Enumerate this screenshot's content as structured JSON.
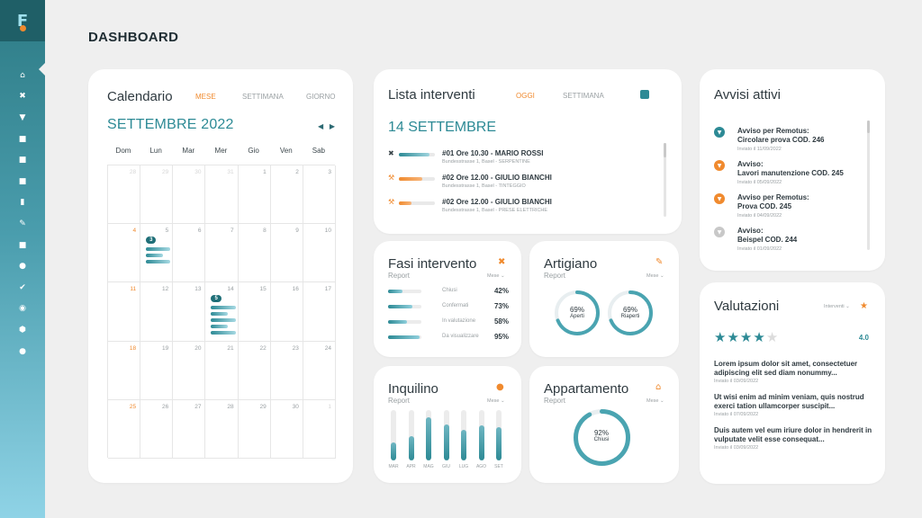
{
  "page_title": "DASHBOARD",
  "colors": {
    "accent": "#2d8a95",
    "orange": "#f08a2e",
    "sidebar_top": "#2d7b85",
    "sidebar_bottom": "#8fd3e6"
  },
  "sidebar": {
    "logo_letter": "F",
    "items": [
      {
        "icon": "home-icon",
        "glyph": "⌂"
      },
      {
        "icon": "tools-icon",
        "glyph": "✖"
      },
      {
        "icon": "filter-icon",
        "glyph": "▼"
      },
      {
        "icon": "folder-icon",
        "glyph": "■"
      },
      {
        "icon": "document-icon",
        "glyph": "■"
      },
      {
        "icon": "file-icon",
        "glyph": "■"
      },
      {
        "icon": "bookmark-icon",
        "glyph": "▮"
      },
      {
        "icon": "wrench-icon",
        "glyph": "✎"
      },
      {
        "icon": "briefcase-icon",
        "glyph": "■"
      },
      {
        "icon": "users-icon",
        "glyph": "●"
      },
      {
        "icon": "check-icon",
        "glyph": "✔"
      },
      {
        "icon": "power-icon",
        "glyph": "◉"
      },
      {
        "icon": "gear-icon",
        "glyph": "⬢"
      },
      {
        "icon": "chat-icon",
        "glyph": "●"
      }
    ]
  },
  "calendar": {
    "title": "Calendario",
    "tabs": [
      "MESE",
      "SETTIMANA",
      "GIORNO"
    ],
    "active_tab": "MESE",
    "month": "SETTEMBRE 2022",
    "weekdays": [
      "Dom",
      "Lun",
      "Mar",
      "Mer",
      "Gio",
      "Ven",
      "Sab"
    ],
    "weeks": [
      [
        {
          "d": "28",
          "m": true
        },
        {
          "d": "29",
          "m": true
        },
        {
          "d": "30",
          "m": true
        },
        {
          "d": "31",
          "m": true
        },
        {
          "d": "1"
        },
        {
          "d": "2"
        },
        {
          "d": "3"
        }
      ],
      [
        {
          "d": "4"
        },
        {
          "d": "5",
          "badge": "3",
          "bars": [
            0.8,
            0.55,
            0.8
          ]
        },
        {
          "d": "6"
        },
        {
          "d": "7"
        },
        {
          "d": "8"
        },
        {
          "d": "9"
        },
        {
          "d": "10"
        }
      ],
      [
        {
          "d": "11"
        },
        {
          "d": "12"
        },
        {
          "d": "13"
        },
        {
          "d": "14",
          "badge": "5",
          "bars": [
            0.8,
            0.55,
            0.8,
            0.55,
            0.8
          ]
        },
        {
          "d": "15"
        },
        {
          "d": "16"
        },
        {
          "d": "17"
        }
      ],
      [
        {
          "d": "18"
        },
        {
          "d": "19"
        },
        {
          "d": "20"
        },
        {
          "d": "21"
        },
        {
          "d": "22"
        },
        {
          "d": "23"
        },
        {
          "d": "24"
        }
      ],
      [
        {
          "d": "25"
        },
        {
          "d": "26"
        },
        {
          "d": "27"
        },
        {
          "d": "28"
        },
        {
          "d": "29"
        },
        {
          "d": "30"
        },
        {
          "d": "1",
          "m": true
        }
      ]
    ]
  },
  "interventi": {
    "title": "Lista interventi",
    "tabs": [
      "OGGI",
      "SETTIMANA"
    ],
    "active_tab": "OGGI",
    "date": "14 SETTEMBRE",
    "items": [
      {
        "icon": "tools-icon",
        "title": "#01 Ore 10.30 - MARIO ROSSI",
        "address": "Bundesstrasse 1, Basel - SERPENTINE",
        "progress": 0.85,
        "color": "#2d8a95"
      },
      {
        "icon": "hammer-icon",
        "title": "#02 Ore 12.00 - GIULIO BIANCHI",
        "address": "Bundesstrasse 1, Basel - TINTEGGIO",
        "progress": 0.65,
        "color": "#f08a2e"
      },
      {
        "icon": "hammer-icon",
        "title": "#02 Ore 12.00 - GIULIO BIANCHI",
        "address": "Bundesstrasse 1, Basel - PRESE ELETTRICHE",
        "progress": 0.35,
        "color": "#f08a2e"
      }
    ]
  },
  "fasi": {
    "title": "Fasi intervento",
    "subtitle": "Report",
    "mese": "Mese ⌄",
    "rows": [
      {
        "label": "Chiusi",
        "value": "42%",
        "fill": 0.42
      },
      {
        "label": "Confermati",
        "value": "73%",
        "fill": 0.73
      },
      {
        "label": "In valutazione",
        "value": "58%",
        "fill": 0.58
      },
      {
        "label": "Da visualizzare",
        "value": "95%",
        "fill": 0.95
      }
    ]
  },
  "artigiano": {
    "title": "Artigiano",
    "subtitle": "Report",
    "mese": "Mese ⌄",
    "donuts": [
      {
        "value": "69%",
        "label": "Aperti",
        "fill": 0.69
      },
      {
        "value": "69%",
        "label": "Riaperti",
        "fill": 0.69
      }
    ]
  },
  "inquilino": {
    "title": "Inquilino",
    "subtitle": "Report",
    "mese": "Mese ⌄",
    "bars": [
      {
        "label": "MAR",
        "fill": 0.35
      },
      {
        "label": "APR",
        "fill": 0.48
      },
      {
        "label": "MAG",
        "fill": 0.85
      },
      {
        "label": "GIU",
        "fill": 0.72
      },
      {
        "label": "LUG",
        "fill": 0.6
      },
      {
        "label": "AGO",
        "fill": 0.7
      },
      {
        "label": "SET",
        "fill": 0.66
      }
    ]
  },
  "appartamento": {
    "title": "Appartamento",
    "subtitle": "Report",
    "mese": "Mese ⌄",
    "donut": {
      "value": "92%",
      "label": "Chiusi",
      "fill": 0.92
    }
  },
  "avvisi": {
    "title": "Avvisi attivi",
    "items": [
      {
        "icon": "filter-icon",
        "color": "#2d8a95",
        "glyph": "▼",
        "title": "Avviso per Remotus:\nCircolare prova COD. 246",
        "date": "Inviato il 11/09/2022"
      },
      {
        "icon": "filter-icon",
        "color": "#f08a2e",
        "glyph": "▼",
        "title": "Avviso:\nLavori manutenzione COD. 245",
        "date": "Inviato il 05/09/2022"
      },
      {
        "icon": "filter-icon",
        "color": "#f08a2e",
        "glyph": "▼",
        "title": "Avviso per Remotus:\nProva COD. 245",
        "date": "Inviato il 04/09/2022"
      },
      {
        "icon": "filter-icon",
        "color": "#c8c8c8",
        "glyph": "▼",
        "title": "Avviso:\nBeispel COD. 244",
        "date": "Inviato il 01/09/2022"
      }
    ]
  },
  "valutazioni": {
    "title": "Valutazioni",
    "filter": "Interventi ⌄",
    "rating": 4,
    "max": 5,
    "score": "4.0",
    "reviews": [
      {
        "text": "Lorem ipsum dolor sit amet, consectetuer adipiscing elit sed diam nonummy...",
        "date": "Inviato il 03/09/2022"
      },
      {
        "text": "Ut wisi enim ad minim veniam, quis nostrud exerci tation ullamcorper suscipit...",
        "date": "Inviato il 07/09/2022"
      },
      {
        "text": "Duis autem vel eum iriure dolor in hendrerit in vulputate velit esse consequat...",
        "date": "Inviato il 03/09/2022"
      }
    ]
  }
}
